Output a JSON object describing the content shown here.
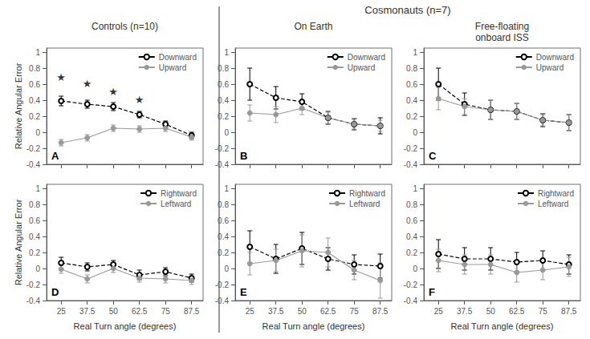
{
  "chart_data": [
    {
      "type": "line",
      "subtitle": "Controls (n=10)",
      "ylabel": "Relative Angular Error",
      "x": [
        25,
        37.5,
        50,
        62.5,
        75,
        87.5
      ],
      "xlim": [
        18,
        93
      ],
      "xticks": [
        25,
        37.5,
        50,
        62.5,
        75,
        87.5
      ],
      "ylim": [
        -0.4,
        1.05
      ],
      "yticks": [
        -0.4,
        -0.2,
        0,
        0.2,
        0.4,
        0.6,
        0.8,
        1
      ],
      "tick_labels": "y",
      "grid": false,
      "legend": "upper right",
      "series": [
        {
          "name": "Downward",
          "color": "#000000",
          "line_style": "dashed",
          "marker": "open_circle",
          "values": [
            0.39,
            0.35,
            0.32,
            0.22,
            0.1,
            -0.04
          ],
          "errors": [
            0.06,
            0.05,
            0.05,
            0.04,
            0.04,
            0.04
          ]
        },
        {
          "name": "Upward",
          "color": "#999999",
          "line_style": "solid",
          "marker": "circle",
          "values": [
            -0.13,
            -0.07,
            0.05,
            0.04,
            0.05,
            -0.06
          ],
          "errors": [
            0.04,
            0.04,
            0.04,
            0.04,
            0.04,
            0.04
          ]
        }
      ],
      "annotations": [
        {
          "text": "★",
          "x": 25,
          "y": 0.69
        },
        {
          "text": "★",
          "x": 37.5,
          "y": 0.61
        },
        {
          "text": "★",
          "x": 50,
          "y": 0.51
        },
        {
          "text": "★",
          "x": 62.5,
          "y": 0.41
        },
        {
          "text": "A"
        }
      ]
    },
    {
      "type": "line",
      "title": "Cosmonauts (n=7)",
      "subtitle": "On Earth",
      "x": [
        25,
        37.5,
        50,
        62.5,
        75,
        87.5
      ],
      "xlim": [
        18,
        93
      ],
      "xticks": [
        25,
        37.5,
        50,
        62.5,
        75,
        87.5
      ],
      "ylim": [
        -0.4,
        1.05
      ],
      "yticks": [
        -0.4,
        -0.2,
        0,
        0.2,
        0.4,
        0.6,
        0.8,
        1
      ],
      "tick_labels": "y",
      "grid": false,
      "legend": "upper right",
      "series": [
        {
          "name": "Downward",
          "color": "#000000",
          "line_style": "dashed",
          "marker": "open_circle",
          "values": [
            0.6,
            0.43,
            0.38,
            0.18,
            0.1,
            0.08
          ],
          "errors": [
            0.2,
            0.14,
            0.1,
            0.08,
            0.07,
            0.1
          ]
        },
        {
          "name": "Upward",
          "color": "#999999",
          "line_style": "solid",
          "marker": "circle",
          "values": [
            0.24,
            0.22,
            0.3,
            0.18,
            0.1,
            0.08
          ],
          "errors": [
            0.1,
            0.1,
            0.08,
            0.07,
            0.06,
            0.07
          ]
        }
      ],
      "annotations": [
        {
          "text": "B"
        }
      ]
    },
    {
      "type": "line",
      "subtitle": "Free-floating\nonboard ISS",
      "x": [
        25,
        37.5,
        50,
        62.5,
        75,
        87.5
      ],
      "xlim": [
        18,
        93
      ],
      "xticks": [
        25,
        37.5,
        50,
        62.5,
        75,
        87.5
      ],
      "ylim": [
        -0.4,
        1.05
      ],
      "yticks": [
        -0.4,
        -0.2,
        0,
        0.2,
        0.4,
        0.6,
        0.8,
        1
      ],
      "tick_labels": "y",
      "grid": false,
      "legend": "upper right",
      "series": [
        {
          "name": "Downward",
          "color": "#000000",
          "line_style": "dashed",
          "marker": "open_circle",
          "values": [
            0.6,
            0.35,
            0.28,
            0.26,
            0.15,
            0.12
          ],
          "errors": [
            0.2,
            0.14,
            0.12,
            0.1,
            0.08,
            0.1
          ]
        },
        {
          "name": "Upward",
          "color": "#999999",
          "line_style": "solid",
          "marker": "circle",
          "values": [
            0.42,
            0.32,
            0.28,
            0.26,
            0.15,
            0.12
          ],
          "errors": [
            0.14,
            0.1,
            0.12,
            0.1,
            0.07,
            0.1
          ]
        }
      ],
      "annotations": [
        {
          "text": "C"
        }
      ]
    },
    {
      "type": "line",
      "ylabel": "Relative Angular Error",
      "xlabel": "Real Turn angle (degrees)",
      "x": [
        25,
        37.5,
        50,
        62.5,
        75,
        87.5
      ],
      "xlim": [
        18,
        93
      ],
      "xticks": [
        25,
        37.5,
        50,
        62.5,
        75,
        87.5
      ],
      "ylim": [
        -0.4,
        1.05
      ],
      "yticks": [
        -0.4,
        -0.2,
        0,
        0.2,
        0.4,
        0.6,
        0.8,
        1
      ],
      "grid": false,
      "legend": "upper right",
      "series": [
        {
          "name": "Rightward",
          "color": "#000000",
          "line_style": "dashed",
          "marker": "open_circle",
          "values": [
            0.07,
            0.02,
            0.05,
            -0.08,
            -0.04,
            -0.12
          ],
          "errors": [
            0.07,
            0.05,
            0.05,
            0.06,
            0.05,
            0.05
          ]
        },
        {
          "name": "Leftward",
          "color": "#999999",
          "line_style": "solid",
          "marker": "circle",
          "values": [
            -0.01,
            -0.13,
            0.0,
            -0.12,
            -0.13,
            -0.15
          ],
          "errors": [
            0.05,
            0.05,
            0.05,
            0.05,
            0.05,
            0.05
          ]
        }
      ],
      "annotations": [
        {
          "text": "D"
        }
      ]
    },
    {
      "type": "line",
      "xlabel": "Real Turn angle (degrees)",
      "x": [
        25,
        37.5,
        50,
        62.5,
        75,
        87.5
      ],
      "xlim": [
        18,
        93
      ],
      "xticks": [
        25,
        37.5,
        50,
        62.5,
        75,
        87.5
      ],
      "ylim": [
        -0.4,
        1.05
      ],
      "yticks": [
        -0.4,
        -0.2,
        0,
        0.2,
        0.4,
        0.6,
        0.8,
        1
      ],
      "grid": false,
      "legend": "upper right",
      "series": [
        {
          "name": "Rightward",
          "color": "#000000",
          "line_style": "dashed",
          "marker": "open_circle",
          "values": [
            0.27,
            0.12,
            0.25,
            0.12,
            0.05,
            0.03
          ],
          "errors": [
            0.2,
            0.18,
            0.2,
            0.14,
            0.12,
            0.15
          ]
        },
        {
          "name": "Leftward",
          "color": "#999999",
          "line_style": "solid",
          "marker": "circle",
          "values": [
            0.06,
            0.1,
            0.22,
            0.2,
            -0.02,
            -0.15
          ],
          "errors": [
            0.14,
            0.14,
            0.2,
            0.18,
            0.12,
            0.22
          ]
        }
      ],
      "annotations": [
        {
          "text": "E"
        }
      ]
    },
    {
      "type": "line",
      "xlabel": "Real Turn angle (degrees)",
      "x": [
        25,
        37.5,
        50,
        62.5,
        75,
        87.5
      ],
      "xlim": [
        18,
        93
      ],
      "xticks": [
        25,
        37.5,
        50,
        62.5,
        75,
        87.5
      ],
      "ylim": [
        -0.4,
        1.05
      ],
      "yticks": [
        -0.4,
        -0.2,
        0,
        0.2,
        0.4,
        0.6,
        0.8,
        1
      ],
      "grid": false,
      "legend": "upper right",
      "series": [
        {
          "name": "Rightward",
          "color": "#000000",
          "line_style": "dashed",
          "marker": "open_circle",
          "values": [
            0.18,
            0.12,
            0.12,
            0.08,
            0.1,
            0.05
          ],
          "errors": [
            0.18,
            0.14,
            0.14,
            0.12,
            0.12,
            0.12
          ]
        },
        {
          "name": "Leftward",
          "color": "#999999",
          "line_style": "solid",
          "marker": "circle",
          "values": [
            0.1,
            0.05,
            0.05,
            -0.05,
            -0.02,
            0.02
          ],
          "errors": [
            0.14,
            0.12,
            0.12,
            0.12,
            0.12,
            0.12
          ]
        }
      ],
      "annotations": [
        {
          "text": "F"
        }
      ]
    }
  ]
}
